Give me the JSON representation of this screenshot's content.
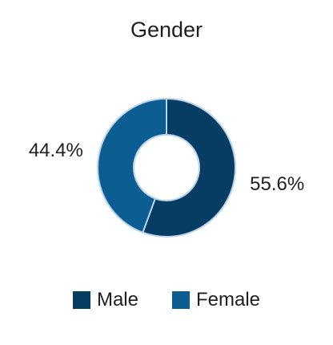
{
  "chart_data": {
    "type": "pie",
    "title": "Gender",
    "donut": true,
    "legend_position": "bottom",
    "categories": [
      "Male",
      "Female"
    ],
    "values": [
      55.6,
      44.4
    ],
    "data_labels": [
      "55.6%",
      "44.4%"
    ],
    "colors": [
      "#083d63",
      "#0b5d92"
    ],
    "slice_border_color": "#b8d4ea"
  }
}
